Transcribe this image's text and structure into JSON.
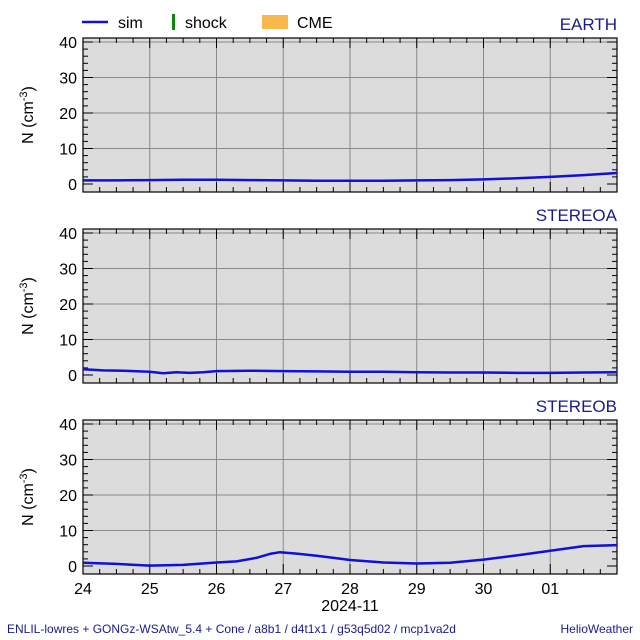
{
  "legend": {
    "sim_label": "sim",
    "shock_label": "shock",
    "cme_label": "CME",
    "sim_color": "#1010d8",
    "shock_color": "#0a8a0a",
    "cme_color": "#f8b84c"
  },
  "footer": {
    "model_text": "ENLIL-lowres + GONGz-WSAtw_5.4 + Cone / a8b1 / d4t1x1 / g53q5d02 / mcp1va2d",
    "brand_text": "HelioWeather",
    "color": "#1a1a8c"
  },
  "chart_data": [
    {
      "type": "line",
      "title": "EARTH",
      "ylabel": "N (cm-3)",
      "ylabel_base": "N (cm",
      "ylabel_exp": "-3",
      "ylabel_close": ")",
      "ylim": [
        0,
        40
      ],
      "yticks": [
        0,
        10,
        20,
        30,
        40
      ],
      "xlim": [
        24,
        32
      ],
      "grid": true,
      "series": [
        {
          "name": "sim",
          "x": [
            24,
            24.5,
            25,
            25.5,
            26,
            26.5,
            27,
            27.5,
            28,
            28.5,
            29,
            29.5,
            30,
            30.5,
            31,
            31.5,
            32
          ],
          "y": [
            1.0,
            1.0,
            1.1,
            1.2,
            1.2,
            1.1,
            1.0,
            0.9,
            0.9,
            0.9,
            1.0,
            1.1,
            1.3,
            1.6,
            2.0,
            2.5,
            3.1
          ]
        }
      ]
    },
    {
      "type": "line",
      "title": "STEREOA",
      "ylabel": "N (cm-3)",
      "ylabel_base": "N (cm",
      "ylabel_exp": "-3",
      "ylabel_close": ")",
      "ylim": [
        0,
        40
      ],
      "yticks": [
        0,
        10,
        20,
        30,
        40
      ],
      "xlim": [
        24,
        32
      ],
      "grid": true,
      "series": [
        {
          "name": "sim",
          "x": [
            24,
            24.3,
            24.6,
            25,
            25.2,
            25.4,
            25.6,
            25.8,
            26,
            26.5,
            27,
            27.5,
            28,
            28.5,
            29,
            29.5,
            30,
            30.5,
            31,
            31.5,
            32
          ],
          "y": [
            1.6,
            1.3,
            1.2,
            0.9,
            0.5,
            0.8,
            0.6,
            0.8,
            1.1,
            1.2,
            1.1,
            1.0,
            0.9,
            0.9,
            0.8,
            0.7,
            0.7,
            0.6,
            0.6,
            0.7,
            0.8
          ]
        }
      ]
    },
    {
      "type": "line",
      "title": "STEREOB",
      "ylabel": "N (cm-3)",
      "ylabel_base": "N (cm",
      "ylabel_exp": "-3",
      "ylabel_close": ")",
      "ylim": [
        0,
        40
      ],
      "yticks": [
        0,
        10,
        20,
        30,
        40
      ],
      "xlim": [
        24,
        32
      ],
      "grid": true,
      "xticklabels": [
        "24",
        "25",
        "26",
        "27",
        "28",
        "29",
        "30",
        "01"
      ],
      "xlabel": "2024-11",
      "series": [
        {
          "name": "sim",
          "x": [
            24,
            24.5,
            25,
            25.5,
            26,
            26.3,
            26.6,
            26.8,
            26.95,
            27.2,
            27.5,
            27.8,
            28,
            28.5,
            29,
            29.5,
            30,
            30.5,
            31,
            31.5,
            32
          ],
          "y": [
            0.9,
            0.6,
            0.1,
            0.3,
            1.0,
            1.3,
            2.3,
            3.4,
            3.9,
            3.5,
            2.9,
            2.2,
            1.7,
            1.0,
            0.7,
            0.9,
            1.8,
            3.0,
            4.3,
            5.6,
            5.9
          ]
        }
      ]
    }
  ]
}
